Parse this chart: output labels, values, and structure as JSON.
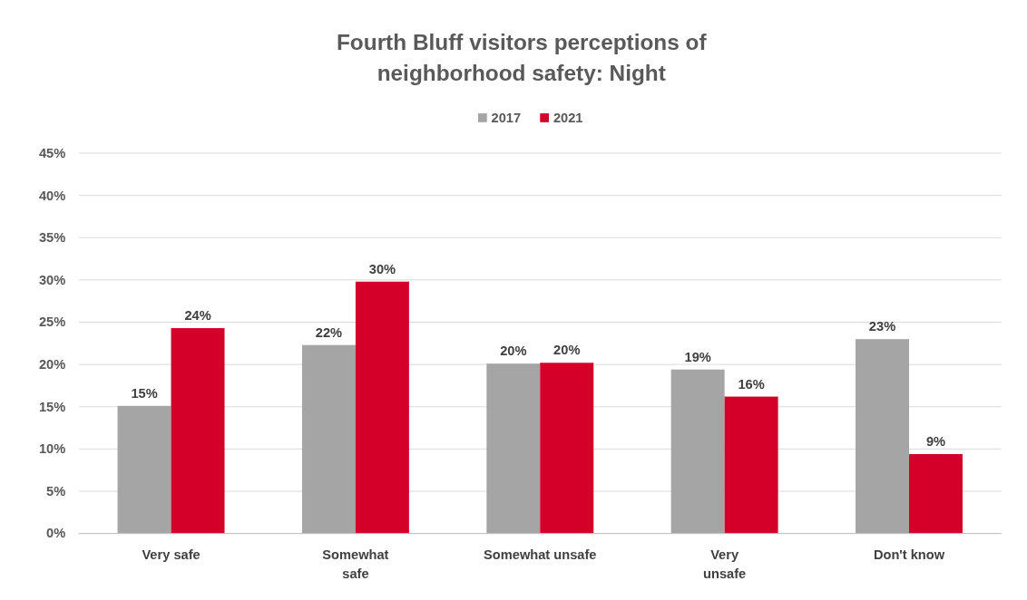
{
  "chart_data": {
    "type": "bar",
    "title": "Fourth Bluff visitors perceptions of\nneighborhood safety: Night",
    "categories": [
      "Very safe",
      "Somewhat\nsafe",
      "Somewhat unsafe",
      "Very\nunsafe",
      "Don't know"
    ],
    "series": [
      {
        "name": "2017",
        "color": "#a5a5a5",
        "values": [
          15.1,
          22.3,
          20.1,
          19.4,
          23
        ],
        "value_labels": [
          "15%",
          "22%",
          "20%",
          "19%",
          "23%"
        ]
      },
      {
        "name": "2021",
        "color": "#d4002a",
        "values": [
          24.3,
          29.8,
          20.2,
          16.2,
          9.4
        ],
        "value_labels": [
          "24%",
          "30%",
          "20%",
          "16%",
          "9%"
        ]
      }
    ],
    "ylim": [
      0,
      45
    ],
    "yticks": [
      {
        "value": 0,
        "label": "0%"
      },
      {
        "value": 5,
        "label": "5%"
      },
      {
        "value": 10,
        "label": "10%"
      },
      {
        "value": 15,
        "label": "15%"
      },
      {
        "value": 20,
        "label": "20%"
      },
      {
        "value": 25,
        "label": "25%"
      },
      {
        "value": 30,
        "label": "30%"
      },
      {
        "value": 35,
        "label": "35%"
      },
      {
        "value": 40,
        "label": "40%"
      },
      {
        "value": 45,
        "label": "45%"
      }
    ],
    "grid": "y",
    "legend": "top"
  }
}
